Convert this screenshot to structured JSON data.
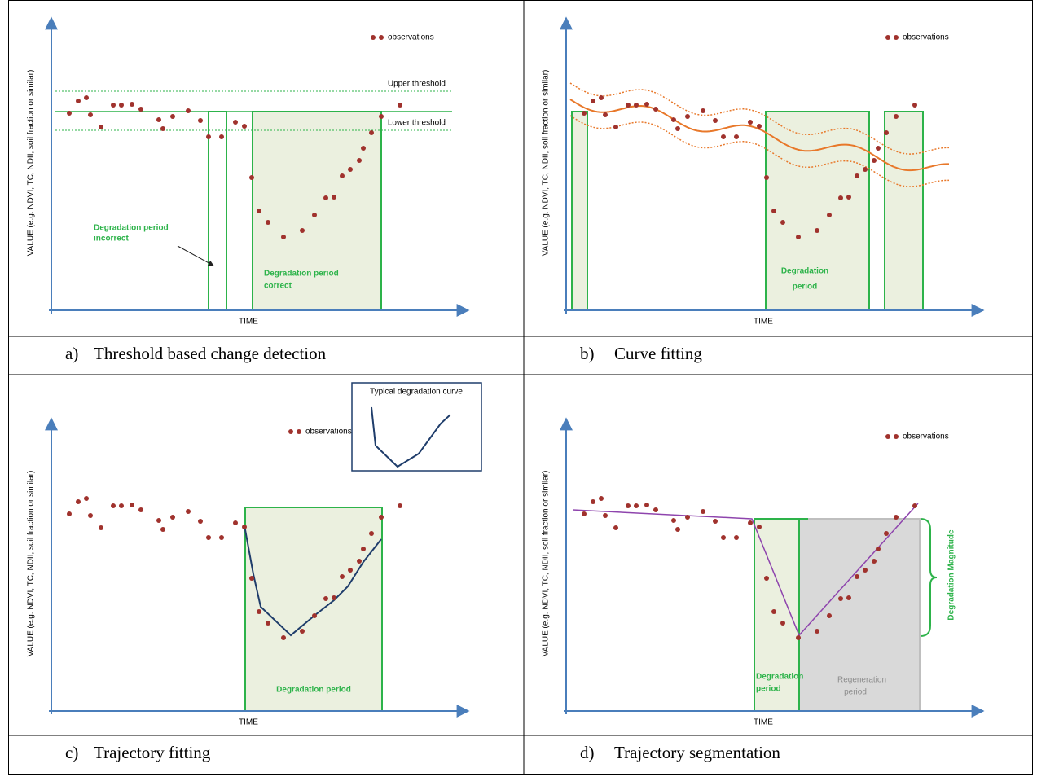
{
  "panels": [
    {
      "letter": "a)",
      "caption": "Threshold based change detection",
      "y_label": "VALUE (e.g. NDVI, TC, NDII, soil fraction or similar)",
      "x_label": "TIME",
      "legend": "observations",
      "notes": [
        "Upper threshold",
        "Lower threshold",
        "Degradation period",
        "incorrect",
        "Degradation period",
        "correct"
      ]
    },
    {
      "letter": "b)",
      "caption": "Curve fitting",
      "y_label": "VALUE (e.g. NDVI, TC, NDII, soil fraction or similar)",
      "x_label": "TIME",
      "legend": "observations",
      "notes": [
        "Degradation",
        "period"
      ]
    },
    {
      "letter": "c)",
      "caption": "Trajectory fitting",
      "y_label": "VALUE (e.g. NDVI, TC, NDII, soil fraction or similar)",
      "x_label": "TIME",
      "legend": "observations",
      "notes": [
        "Degradation period",
        "Typical degradation curve"
      ]
    },
    {
      "letter": "d)",
      "caption": "Trajectory segmentation",
      "y_label": "VALUE (e.g. NDVI, TC, NDII, soil fraction or similar)",
      "x_label": "TIME",
      "legend": "observations",
      "notes": [
        "Degradation",
        "period",
        "Regeneration",
        "period",
        "Degradation Magnitude"
      ]
    }
  ]
}
